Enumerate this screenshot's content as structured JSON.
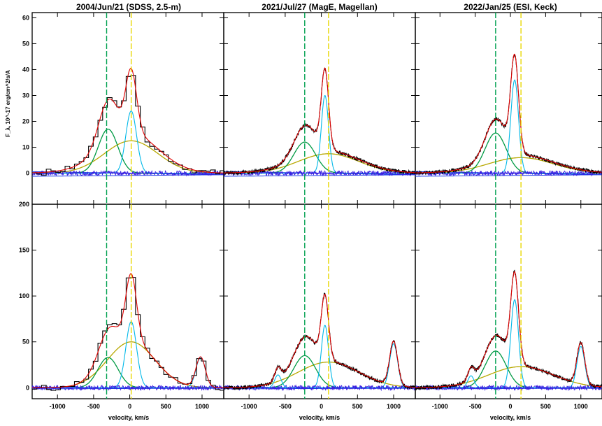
{
  "figure": {
    "titles": [
      "2004/Jun/21 (SDSS, 2.5-m)",
      "2021/Jul/27 (MagE, Magellan)",
      "2022/Jan/25 (ESI, Keck)"
    ],
    "xlabel": "velocity, km/s",
    "ylabel": "F_λ, 10^-17 erg/cm^2/s/A"
  },
  "chart_data": {
    "type": "line",
    "xlabel": "velocity, km/s",
    "ylabel": "F_λ, 10^-17 erg/cm^2/s/A",
    "xlim": [
      -1350,
      1300
    ],
    "x_ticks": [
      -1000,
      -500,
      0,
      500,
      1000
    ],
    "rows": [
      {
        "row": "top",
        "ylim": [
          -12,
          62
        ],
        "y_ticks": [
          0,
          10,
          20,
          30,
          40,
          50,
          60
        ]
      },
      {
        "row": "bottom",
        "ylim": [
          -12,
          200
        ],
        "y_ticks": [
          0,
          50,
          100,
          150,
          200
        ]
      }
    ],
    "colors": {
      "observed": "#000000",
      "total_model": "#e00000",
      "broad_component": "#009a44",
      "narrow_component": "#00b8e8",
      "very_broad_component": "#b8a800",
      "residual": "#3a1ee0",
      "continuum": "#1a3ae8",
      "marker_green": "#00a050",
      "marker_yellow": "#e8d800"
    },
    "panels": [
      {
        "row": "top",
        "col": 0,
        "title": "2004/Jun/21 (SDSS, 2.5-m)",
        "step": true,
        "broad": {
          "center": -300,
          "amp": 17,
          "sigma": 135
        },
        "narrow": {
          "center": 20,
          "amp": 24,
          "sigma": 75
        },
        "very_broad": {
          "center": 20,
          "amp": 12.5,
          "sigma": 370
        },
        "wing": {
          "center": -100,
          "amp": 3,
          "sigma": 500
        },
        "markers": [
          -320,
          20
        ],
        "peak": 44
      },
      {
        "row": "top",
        "col": 1,
        "title": "2021/Jul/27 (MagE, Magellan)",
        "step": false,
        "broad": {
          "center": -230,
          "amp": 12,
          "sigma": 150
        },
        "narrow": {
          "center": 50,
          "amp": 30,
          "sigma": 50
        },
        "very_broad": {
          "center": 100,
          "amp": 7.5,
          "sigma": 420
        },
        "wing": {
          "center": 0,
          "amp": 1,
          "sigma": 600
        },
        "markers": [
          -230,
          100
        ],
        "peak": 45
      },
      {
        "row": "top",
        "col": 2,
        "title": "2022/Jan/25 (ESI, Keck)",
        "step": false,
        "broad": {
          "center": -210,
          "amp": 15.5,
          "sigma": 150
        },
        "narrow": {
          "center": 60,
          "amp": 36,
          "sigma": 55
        },
        "very_broad": {
          "center": 150,
          "amp": 6,
          "sigma": 460
        },
        "wing": {
          "center": 0,
          "amp": 1,
          "sigma": 600
        },
        "markers": [
          -210,
          150
        ],
        "peak": 52
      },
      {
        "row": "bottom",
        "col": 0,
        "step": true,
        "broad": {
          "center": -300,
          "amp": 33,
          "sigma": 140
        },
        "narrow": {
          "center": 20,
          "amp": 72,
          "sigma": 75
        },
        "very_broad": {
          "center": 20,
          "amp": 50,
          "sigma": 330
        },
        "extra": {
          "center": 980,
          "amp": 33,
          "sigma": 65
        },
        "markers": [
          -320,
          20
        ],
        "peak": 135
      },
      {
        "row": "bottom",
        "col": 1,
        "step": false,
        "broad": {
          "center": -230,
          "amp": 35,
          "sigma": 150
        },
        "narrow": {
          "center": 50,
          "amp": 68,
          "sigma": 50
        },
        "very_broad": {
          "center": 100,
          "amp": 28,
          "sigma": 420
        },
        "extra": {
          "center": 1000,
          "amp": 48,
          "sigma": 55
        },
        "shoulder": {
          "center": -600,
          "amp": 14,
          "sigma": 45
        },
        "markers": [
          -230,
          100
        ],
        "peak": 120
      },
      {
        "row": "bottom",
        "col": 2,
        "step": false,
        "broad": {
          "center": -210,
          "amp": 40,
          "sigma": 150
        },
        "narrow": {
          "center": 60,
          "amp": 96,
          "sigma": 55
        },
        "very_broad": {
          "center": 150,
          "amp": 23,
          "sigma": 460
        },
        "extra": {
          "center": 1000,
          "amp": 45,
          "sigma": 55
        },
        "shoulder": {
          "center": -560,
          "amp": 13,
          "sigma": 45
        },
        "markers": [
          -210,
          150
        ],
        "peak": 140
      }
    ]
  }
}
